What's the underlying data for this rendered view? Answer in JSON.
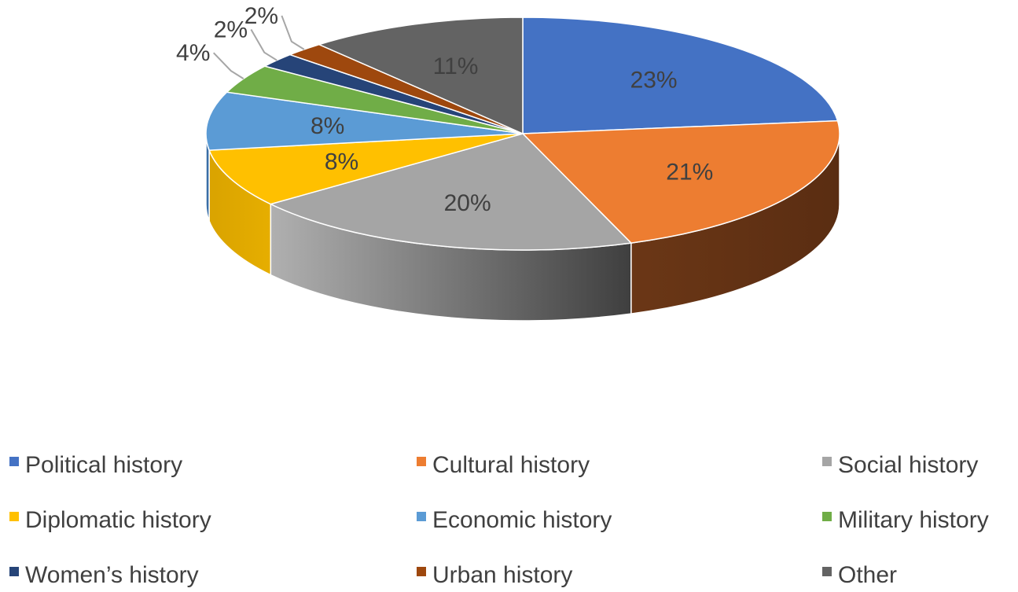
{
  "chart_data": {
    "type": "pie",
    "style": "3d",
    "title": "",
    "legend_position": "bottom",
    "slices": [
      {
        "name": "Political history",
        "value": 23,
        "label": "23%",
        "color": "#4472C4",
        "side_color": "#2F528F"
      },
      {
        "name": "Cultural history",
        "value": 21,
        "label": "21%",
        "color": "#ED7D31",
        "side_color": "#613214"
      },
      {
        "name": "Social history",
        "value": 20,
        "label": "20%",
        "color": "#A5A5A5",
        "side_color": "#7F7F7F"
      },
      {
        "name": "Diplomatic history",
        "value": 8,
        "label": "8%",
        "color": "#FFC000",
        "side_color": "#D9A300"
      },
      {
        "name": "Economic history",
        "value": 8,
        "label": "8%",
        "color": "#5B9BD5",
        "side_color": "#3A6EA5"
      },
      {
        "name": "Military history",
        "value": 4,
        "label": "4%",
        "color": "#70AD47",
        "side_color": "#4E7A31"
      },
      {
        "name": "Women’s history",
        "value": 2,
        "label": "2%",
        "color": "#264478",
        "side_color": "#1A2F55"
      },
      {
        "name": "Urban history",
        "value": 2,
        "label": "2%",
        "color": "#9E480E",
        "side_color": "#6E320A"
      },
      {
        "name": "Other",
        "value": 11,
        "label": "11%",
        "color": "#636363",
        "side_color": "#454545"
      }
    ]
  }
}
